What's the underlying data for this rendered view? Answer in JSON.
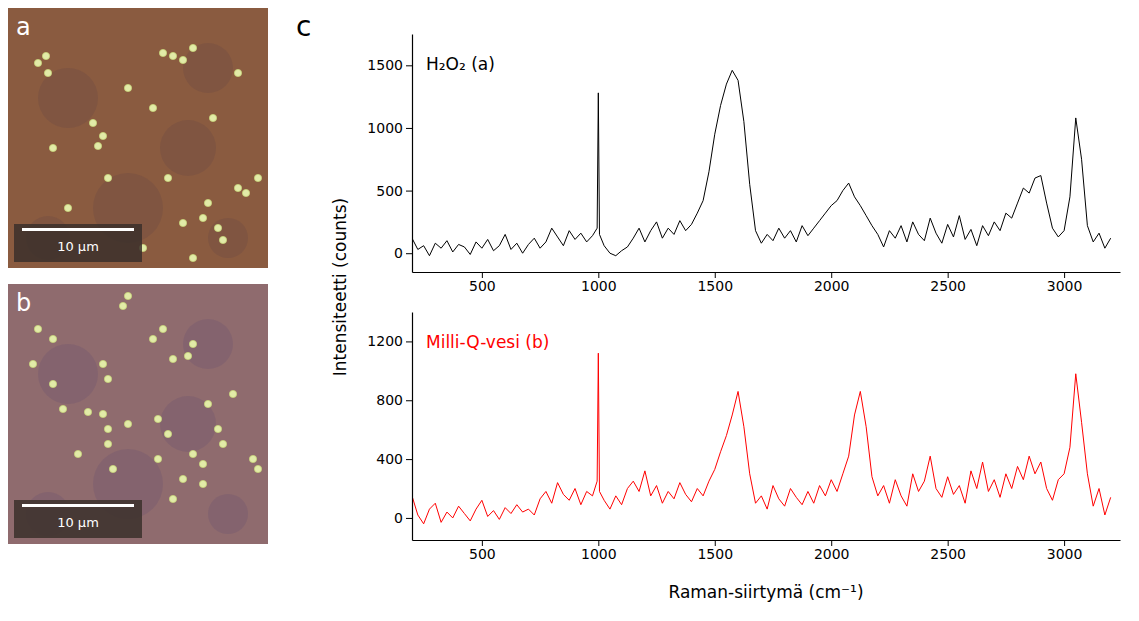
{
  "images": [
    {
      "label": "a",
      "scale_bar": "10 µm"
    },
    {
      "label": "b",
      "scale_bar": "10 µm"
    }
  ],
  "chart_label": "c",
  "chart_data": [
    {
      "type": "line",
      "ylabel": "Intensiteetti (counts)",
      "x": [
        200,
        225,
        250,
        275,
        300,
        325,
        350,
        375,
        400,
        425,
        450,
        475,
        500,
        525,
        550,
        575,
        600,
        625,
        650,
        675,
        700,
        725,
        750,
        775,
        800,
        825,
        850,
        875,
        900,
        925,
        950,
        975,
        995,
        1000,
        1005,
        1025,
        1050,
        1075,
        1100,
        1125,
        1150,
        1175,
        1200,
        1225,
        1250,
        1275,
        1300,
        1325,
        1350,
        1375,
        1400,
        1425,
        1450,
        1475,
        1500,
        1525,
        1550,
        1575,
        1600,
        1625,
        1650,
        1675,
        1700,
        1725,
        1750,
        1775,
        1800,
        1825,
        1850,
        1875,
        1900,
        1925,
        1950,
        1975,
        2000,
        2025,
        2050,
        2075,
        2100,
        2125,
        2150,
        2175,
        2200,
        2225,
        2250,
        2275,
        2300,
        2325,
        2350,
        2375,
        2400,
        2425,
        2450,
        2475,
        2500,
        2525,
        2550,
        2575,
        2600,
        2625,
        2650,
        2675,
        2700,
        2725,
        2750,
        2775,
        2800,
        2825,
        2850,
        2875,
        2900,
        2925,
        2950,
        2975,
        3000,
        3025,
        3050,
        3075,
        3100,
        3125,
        3150,
        3175,
        3200
      ],
      "series": [
        {
          "name": "H₂O₂ (a)",
          "color": "#000000",
          "values": [
            120,
            30,
            60,
            -20,
            80,
            40,
            100,
            10,
            70,
            50,
            -10,
            90,
            40,
            110,
            20,
            60,
            150,
            30,
            80,
            0,
            70,
            120,
            40,
            90,
            200,
            130,
            60,
            180,
            110,
            160,
            90,
            140,
            200,
            1280,
            150,
            60,
            0,
            -20,
            20,
            50,
            120,
            200,
            90,
            180,
            250,
            120,
            200,
            150,
            260,
            180,
            230,
            320,
            420,
            650,
            950,
            1180,
            1350,
            1460,
            1380,
            1050,
            550,
            180,
            80,
            150,
            100,
            200,
            120,
            180,
            90,
            220,
            140,
            200,
            260,
            320,
            380,
            420,
            500,
            560,
            450,
            380,
            300,
            220,
            150,
            50,
            180,
            120,
            220,
            90,
            250,
            150,
            100,
            280,
            160,
            80,
            230,
            130,
            300,
            110,
            190,
            60,
            220,
            140,
            250,
            180,
            320,
            280,
            400,
            520,
            480,
            600,
            620,
            400,
            200,
            130,
            180,
            450,
            1080,
            750,
            220,
            90,
            160,
            40,
            120
          ]
        }
      ],
      "xlim": [
        200,
        3240
      ],
      "xticks": [
        500,
        1000,
        1500,
        2000,
        2500,
        3000
      ],
      "ylim": [
        -150,
        1750
      ],
      "yticks": [
        0,
        500,
        1000,
        1500
      ]
    },
    {
      "type": "line",
      "xlabel": "Raman-siirtymä (cm⁻¹)",
      "x": [
        200,
        225,
        250,
        275,
        300,
        325,
        350,
        375,
        400,
        425,
        450,
        475,
        500,
        525,
        550,
        575,
        600,
        625,
        650,
        675,
        700,
        725,
        750,
        775,
        800,
        825,
        850,
        875,
        900,
        925,
        950,
        975,
        995,
        1000,
        1005,
        1025,
        1050,
        1075,
        1100,
        1125,
        1150,
        1175,
        1200,
        1225,
        1250,
        1275,
        1300,
        1325,
        1350,
        1375,
        1400,
        1425,
        1450,
        1475,
        1500,
        1525,
        1550,
        1575,
        1600,
        1625,
        1650,
        1675,
        1700,
        1725,
        1750,
        1775,
        1800,
        1825,
        1850,
        1875,
        1900,
        1925,
        1950,
        1975,
        2000,
        2025,
        2050,
        2075,
        2100,
        2125,
        2150,
        2175,
        2200,
        2225,
        2250,
        2275,
        2300,
        2325,
        2350,
        2375,
        2400,
        2425,
        2450,
        2475,
        2500,
        2525,
        2550,
        2575,
        2600,
        2625,
        2650,
        2675,
        2700,
        2725,
        2750,
        2775,
        2800,
        2825,
        2850,
        2875,
        2900,
        2925,
        2950,
        2975,
        3000,
        3025,
        3050,
        3075,
        3100,
        3125,
        3150,
        3175,
        3200
      ],
      "series": [
        {
          "name": "Milli-Q-vesi (b)",
          "color": "#ff0000",
          "values": [
            150,
            20,
            -40,
            60,
            100,
            -30,
            40,
            0,
            80,
            30,
            -20,
            60,
            120,
            10,
            50,
            -10,
            70,
            30,
            90,
            40,
            60,
            20,
            130,
            180,
            100,
            240,
            160,
            120,
            200,
            90,
            180,
            150,
            250,
            1120,
            180,
            120,
            60,
            150,
            90,
            200,
            250,
            180,
            320,
            150,
            220,
            100,
            180,
            130,
            240,
            160,
            110,
            200,
            150,
            250,
            330,
            450,
            560,
            700,
            860,
            620,
            300,
            100,
            150,
            60,
            220,
            130,
            80,
            200,
            140,
            90,
            180,
            100,
            220,
            150,
            260,
            180,
            300,
            420,
            700,
            860,
            620,
            280,
            150,
            220,
            100,
            260,
            150,
            80,
            300,
            180,
            250,
            420,
            200,
            140,
            280,
            160,
            220,
            100,
            320,
            200,
            380,
            180,
            260,
            140,
            300,
            200,
            350,
            260,
            420,
            300,
            380,
            200,
            120,
            260,
            300,
            480,
            980,
            650,
            300,
            80,
            200,
            20,
            140
          ]
        }
      ],
      "xlim": [
        200,
        3240
      ],
      "xticks": [
        500,
        1000,
        1500,
        2000,
        2500,
        3000
      ],
      "ylim": [
        -150,
        1400
      ],
      "yticks": [
        0,
        400,
        800,
        1200
      ]
    }
  ]
}
